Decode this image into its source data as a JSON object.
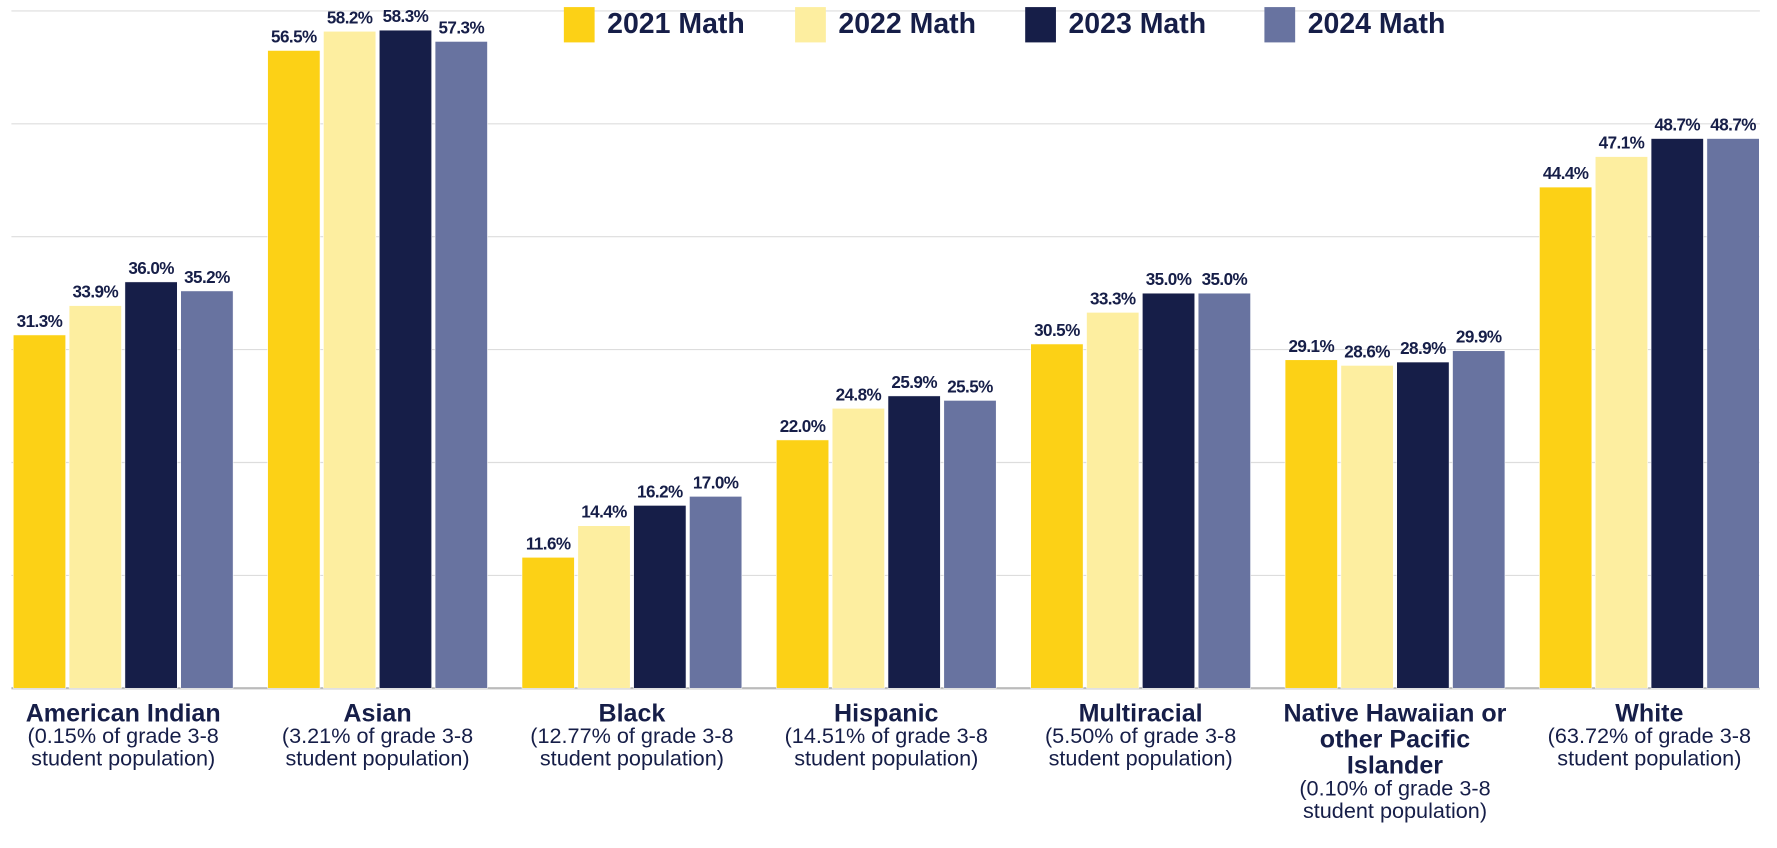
{
  "chart_data": {
    "type": "bar",
    "categories": [
      "American Indian",
      "Asian",
      "Black",
      "Hispanic",
      "Multiracial",
      "Native Hawaiian or other Pacific Islander",
      "White"
    ],
    "category_notes": [
      "(0.15% of grade 3-8 student population)",
      "(3.21% of grade 3-8 student population)",
      "(12.77% of grade 3-8 student population)",
      "(14.51% of grade 3-8 student population)",
      "(5.50% of grade 3-8 student population)",
      "(0.10% of grade 3-8 student population)",
      "(63.72% of grade 3-8 student population)"
    ],
    "series": [
      {
        "name": "2021 Math",
        "color": "#fcd116",
        "values": [
          31.3,
          56.5,
          11.6,
          22.0,
          30.5,
          29.1,
          44.4
        ],
        "value_labels": [
          "31.3%",
          "56.5%",
          "11.6%",
          "22.0%",
          "30.5%",
          "29.1%",
          "44.4%"
        ]
      },
      {
        "name": "2022 Math",
        "color": "#fdeea0",
        "values": [
          33.9,
          58.2,
          14.4,
          24.8,
          33.3,
          28.6,
          47.1
        ],
        "value_labels": [
          "33.9%",
          "58.2%",
          "14.4%",
          "24.8%",
          "33.3%",
          "28.6%",
          "47.1%"
        ]
      },
      {
        "name": "2023 Math",
        "color": "#161e48",
        "values": [
          36.0,
          58.3,
          16.2,
          25.9,
          35.0,
          28.9,
          48.7
        ],
        "value_labels": [
          "36.0%",
          "58.3%",
          "16.2%",
          "25.9%",
          "35.0%",
          "28.9%",
          "48.7%"
        ]
      },
      {
        "name": "2024 Math",
        "color": "#6873a0",
        "values": [
          35.2,
          57.3,
          17.0,
          25.5,
          35.0,
          29.9,
          48.7
        ],
        "value_labels": [
          "35.2%",
          "57.3%",
          "17.0%",
          "25.5%",
          "35.0%",
          "29.9%",
          "48.7%"
        ]
      }
    ],
    "ylim": [
      0,
      60
    ],
    "yticks": [
      0,
      10,
      20,
      30,
      40,
      50,
      60
    ],
    "grid": true,
    "legend": "top"
  }
}
